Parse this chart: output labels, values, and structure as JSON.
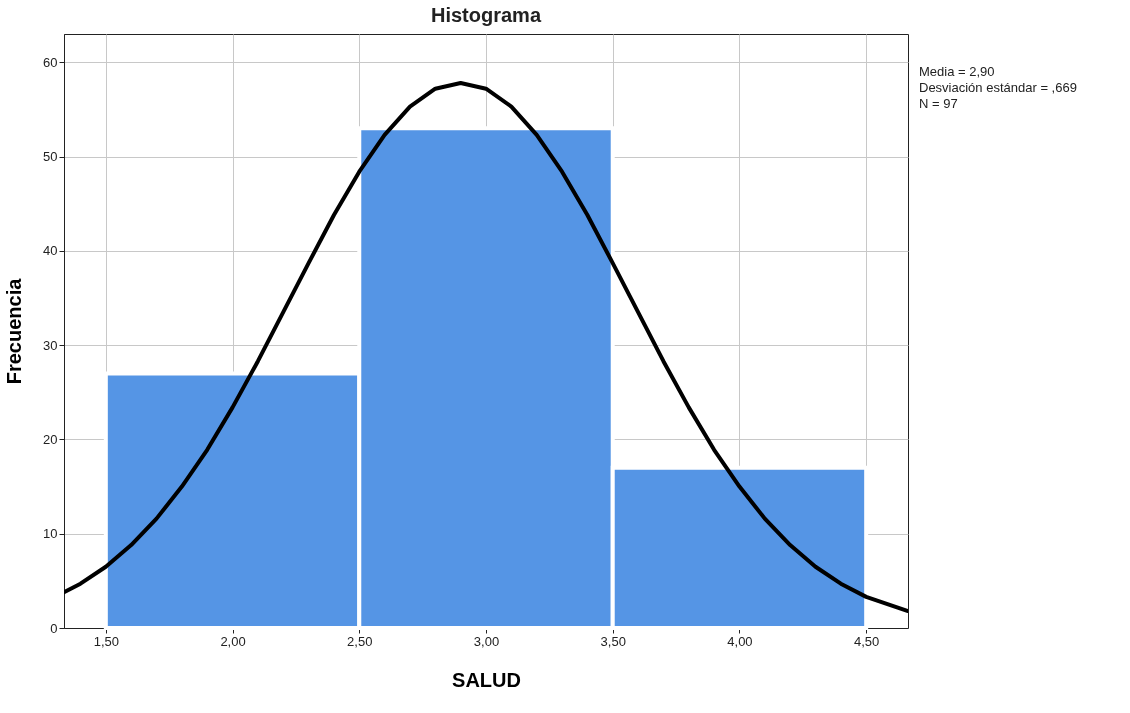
{
  "chart_data": {
    "type": "histogram",
    "title": "Histograma",
    "xlabel": "SALUD",
    "ylabel": "Frecuencia",
    "bins": [
      1.5,
      2.5,
      3.5,
      4.5
    ],
    "values": [
      27,
      53,
      17
    ],
    "color": "#5595e5",
    "series": [
      {
        "type": "line",
        "color": "#000000",
        "x": [
          1.335,
          1.4,
          1.5,
          1.6,
          1.7,
          1.8,
          1.9,
          2.0,
          2.1,
          2.2,
          2.3,
          2.4,
          2.5,
          2.6,
          2.7,
          2.8,
          2.9,
          3.0,
          3.1,
          3.2,
          3.3,
          3.4,
          3.5,
          3.6,
          3.7,
          3.8,
          3.9,
          4.0,
          4.1,
          4.2,
          4.3,
          4.4,
          4.5,
          4.665
        ],
        "values": [
          3.8,
          4.7,
          6.5,
          8.8,
          11.6,
          15.0,
          18.9,
          23.4,
          28.3,
          33.5,
          38.7,
          43.8,
          48.4,
          52.3,
          55.3,
          57.2,
          57.8,
          57.2,
          55.3,
          52.3,
          48.4,
          43.8,
          38.7,
          33.5,
          28.3,
          23.4,
          18.9,
          15.0,
          11.6,
          8.8,
          6.5,
          4.7,
          3.3,
          1.8
        ]
      }
    ],
    "xlim": [
      1.335,
      4.665
    ],
    "ylim": [
      0,
      63
    ],
    "xticks": [
      {
        "value": 1.5,
        "label": "1,50"
      },
      {
        "value": 2.0,
        "label": "2,00"
      },
      {
        "value": 2.5,
        "label": "2,50"
      },
      {
        "value": 3.0,
        "label": "3,00"
      },
      {
        "value": 3.5,
        "label": "3,50"
      },
      {
        "value": 4.0,
        "label": "4,00"
      },
      {
        "value": 4.5,
        "label": "4,50"
      }
    ],
    "yticks": [
      0,
      10,
      20,
      30,
      40,
      50,
      60
    ],
    "grid": true,
    "annotations": [
      "Media = 2,90",
      "Desviación estándar = ,669",
      "N = 97"
    ]
  }
}
